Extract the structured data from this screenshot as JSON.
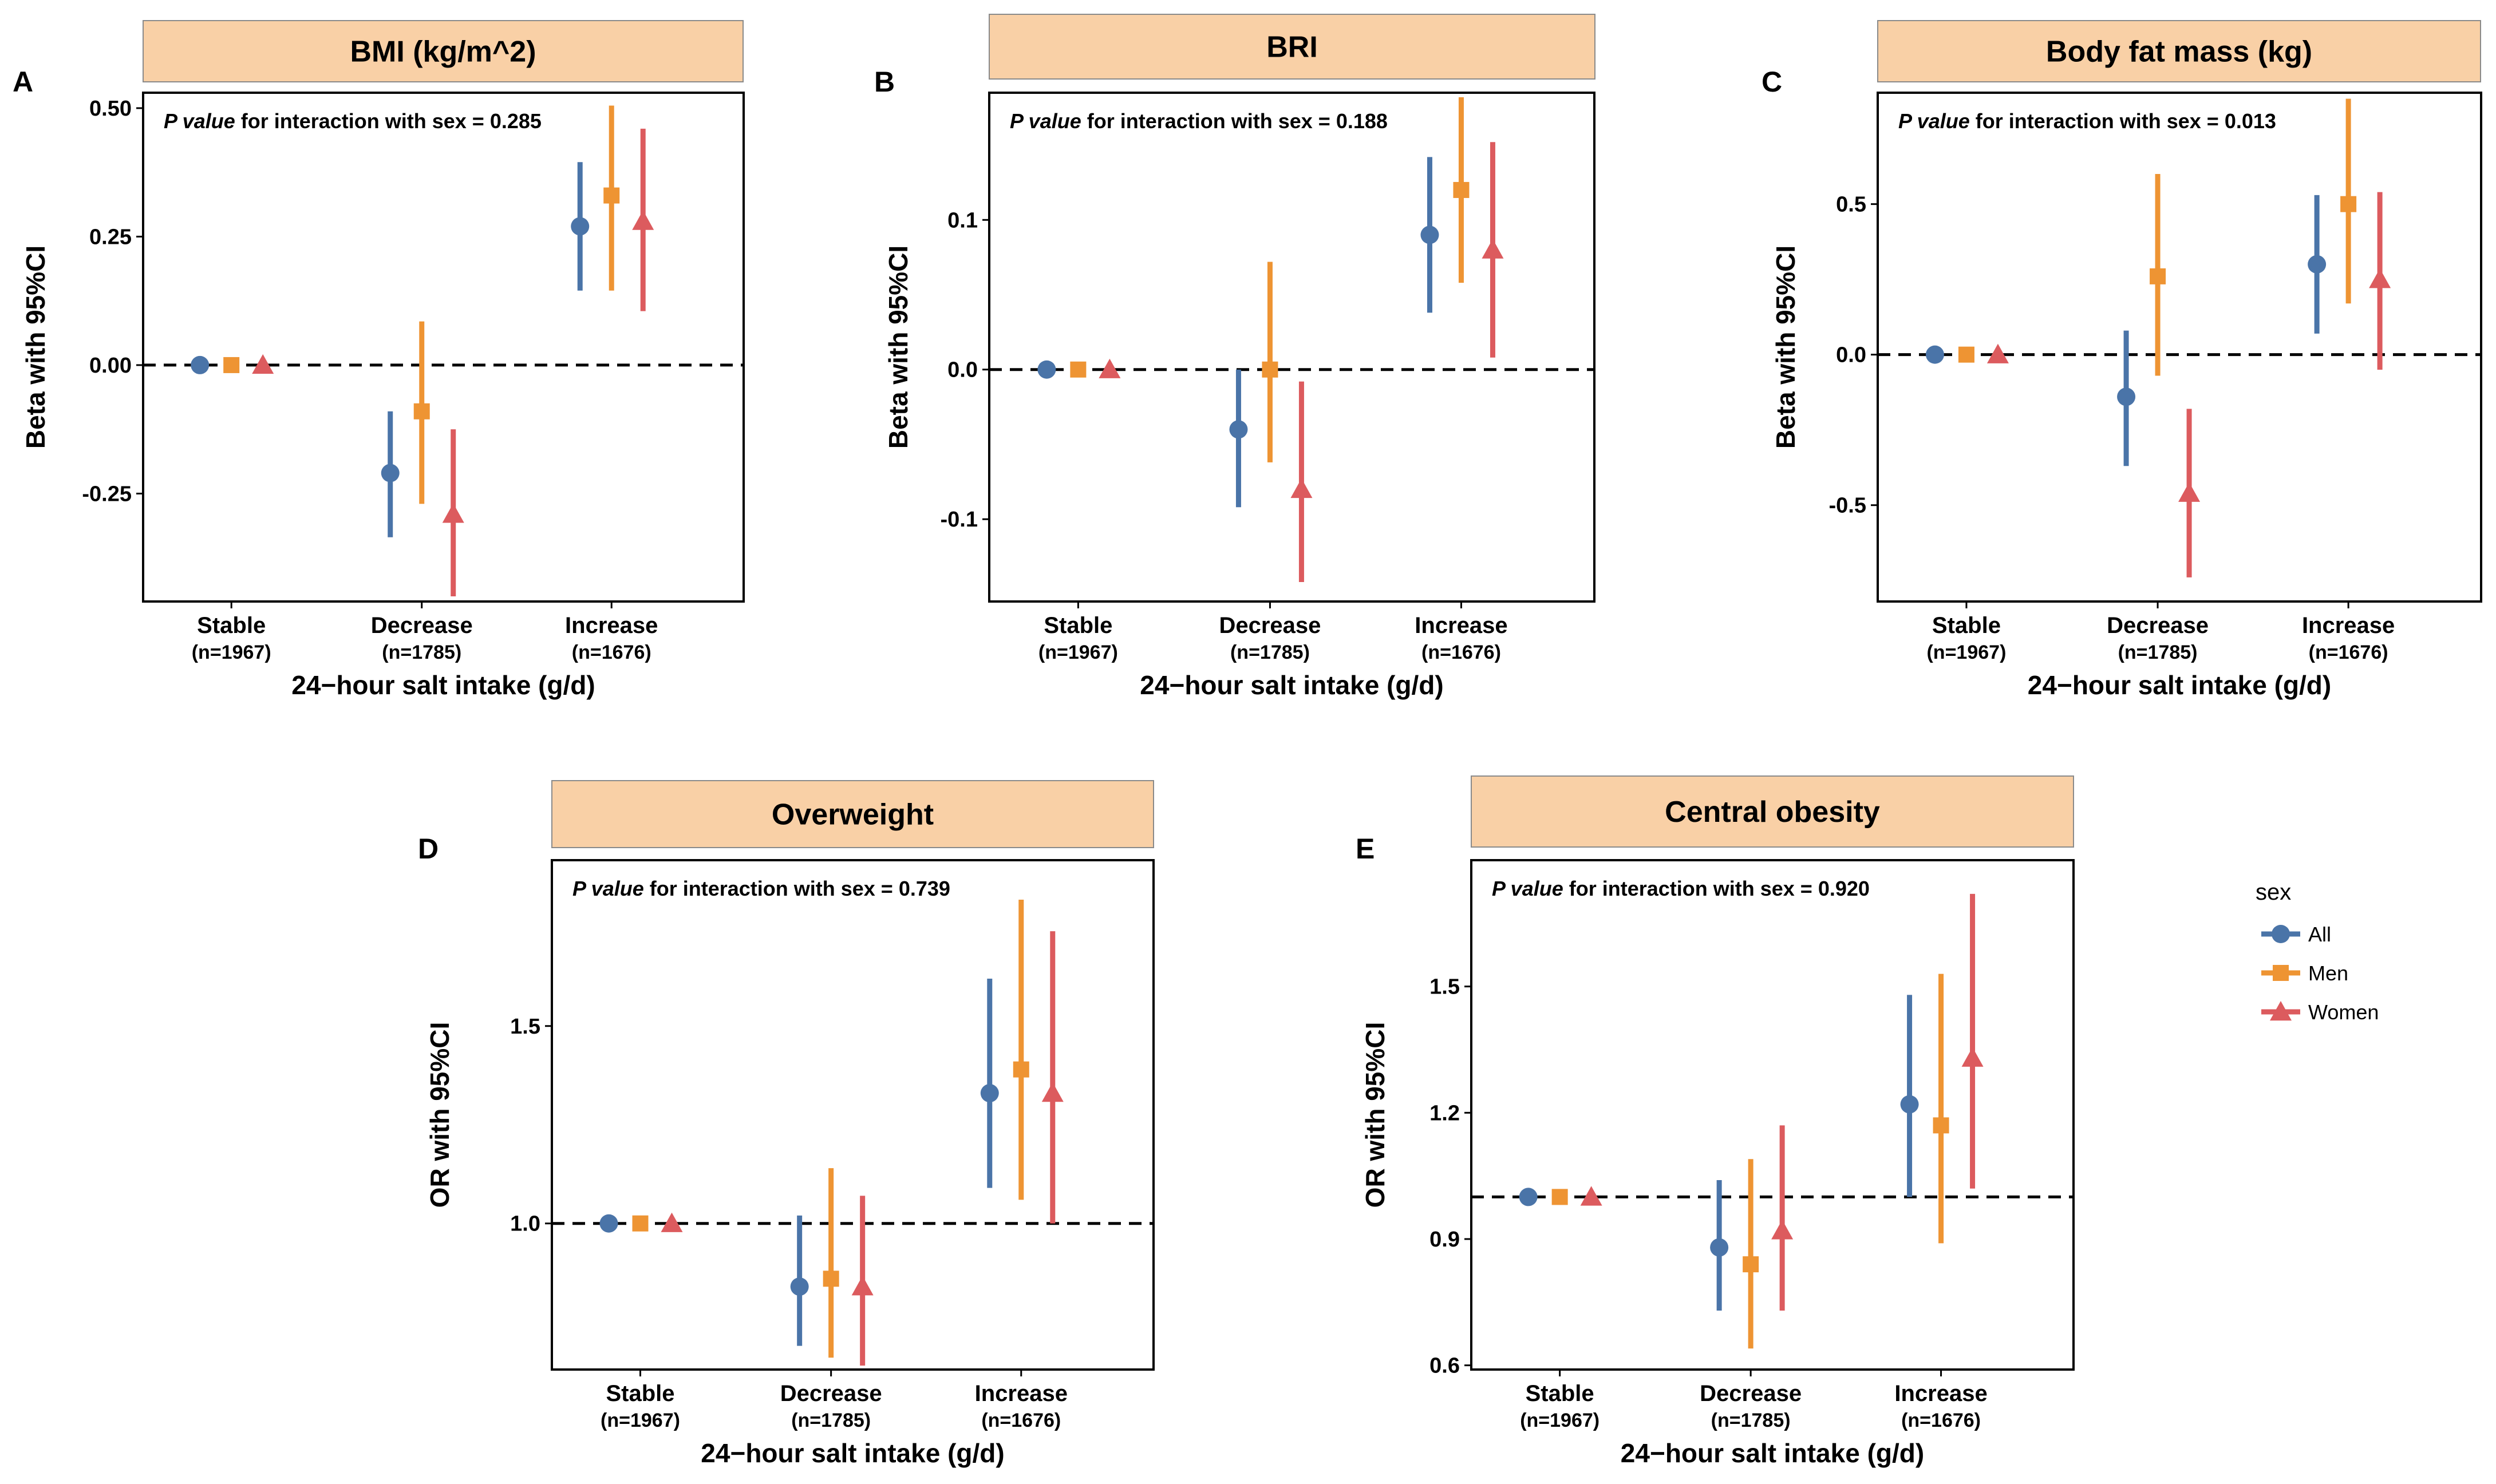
{
  "legend": {
    "title": "sex",
    "items": [
      {
        "label": "All",
        "color": "#4a74a8",
        "shape": "circle"
      },
      {
        "label": "Men",
        "color": "#ee9433",
        "shape": "square"
      },
      {
        "label": "Women",
        "color": "#dc5b5e",
        "shape": "triangle"
      }
    ]
  },
  "chart_data": [
    {
      "panel": "A",
      "type": "scatter",
      "title": "BMI (kg/m^2)",
      "ylabel": "Beta with 95%CI",
      "xlabel": "24−hour salt intake (g/d)",
      "annotation_p": "P value",
      "annotation_rest": " for interaction with sex = 0.285",
      "categories": [
        {
          "label": "Stable",
          "n": "(n=1967)"
        },
        {
          "label": "Decrease",
          "n": "(n=1785)"
        },
        {
          "label": "Increase",
          "n": "(n=1676)"
        }
      ],
      "ylim": [
        -0.46,
        0.53
      ],
      "yticks": [
        0.5,
        0.25,
        0.0,
        -0.25
      ],
      "ytick_labels": [
        "0.50",
        "0.25",
        "0.00",
        "-0.25"
      ],
      "reference": 0,
      "series": [
        {
          "name": "All",
          "est": [
            0.0,
            -0.21,
            0.27
          ],
          "lo": [
            null,
            -0.335,
            0.145
          ],
          "hi": [
            null,
            -0.09,
            0.395
          ]
        },
        {
          "name": "Men",
          "est": [
            0.0,
            -0.09,
            0.33
          ],
          "lo": [
            null,
            -0.27,
            0.145
          ],
          "hi": [
            null,
            0.085,
            0.505
          ]
        },
        {
          "name": "Women",
          "est": [
            0.0,
            -0.29,
            0.28
          ],
          "lo": [
            null,
            -0.45,
            0.105
          ],
          "hi": [
            null,
            -0.125,
            0.46
          ]
        }
      ]
    },
    {
      "panel": "B",
      "type": "scatter",
      "title": "BRI",
      "ylabel": "Beta with 95%CI",
      "xlabel": "24−hour salt intake (g/d)",
      "annotation_p": "P value",
      "annotation_rest": " for interaction with sex = 0.188",
      "categories": [
        {
          "label": "Stable",
          "n": "(n=1967)"
        },
        {
          "label": "Decrease",
          "n": "(n=1785)"
        },
        {
          "label": "Increase",
          "n": "(n=1676)"
        }
      ],
      "ylim": [
        -0.155,
        0.185
      ],
      "yticks": [
        0.1,
        0.0,
        -0.1
      ],
      "ytick_labels": [
        "0.1",
        "0.0",
        "-0.1"
      ],
      "reference": 0,
      "series": [
        {
          "name": "All",
          "est": [
            0.0,
            -0.04,
            0.09
          ],
          "lo": [
            null,
            -0.092,
            0.038
          ],
          "hi": [
            null,
            0.0,
            0.142
          ]
        },
        {
          "name": "Men",
          "est": [
            0.0,
            0.0,
            0.12
          ],
          "lo": [
            null,
            -0.062,
            0.058
          ],
          "hi": [
            null,
            0.072,
            0.182
          ]
        },
        {
          "name": "Women",
          "est": [
            0.0,
            -0.08,
            0.08
          ],
          "lo": [
            null,
            -0.142,
            0.008
          ],
          "hi": [
            null,
            -0.008,
            0.152
          ]
        }
      ]
    },
    {
      "panel": "C",
      "type": "scatter",
      "title": "Body fat mass (kg)",
      "ylabel": "Beta with 95%CI",
      "xlabel": "24−hour salt intake (g/d)",
      "annotation_p": "P value",
      "annotation_rest": " for interaction with sex = 0.013",
      "categories": [
        {
          "label": "Stable",
          "n": "(n=1967)"
        },
        {
          "label": "Decrease",
          "n": "(n=1785)"
        },
        {
          "label": "Increase",
          "n": "(n=1676)"
        }
      ],
      "ylim": [
        -0.82,
        0.87
      ],
      "yticks": [
        0.5,
        0.0,
        -0.5
      ],
      "ytick_labels": [
        "0.5",
        "0.0",
        "-0.5"
      ],
      "reference": 0,
      "series": [
        {
          "name": "All",
          "est": [
            0.0,
            -0.14,
            0.3
          ],
          "lo": [
            null,
            -0.37,
            0.07
          ],
          "hi": [
            null,
            0.08,
            0.53
          ]
        },
        {
          "name": "Men",
          "est": [
            0.0,
            0.26,
            0.5
          ],
          "lo": [
            null,
            -0.07,
            0.17
          ],
          "hi": [
            null,
            0.6,
            0.85
          ]
        },
        {
          "name": "Women",
          "est": [
            0.0,
            -0.46,
            0.25
          ],
          "lo": [
            null,
            -0.74,
            -0.05
          ],
          "hi": [
            null,
            -0.18,
            0.54
          ]
        }
      ]
    },
    {
      "panel": "D",
      "type": "scatter",
      "title": "Overweight",
      "ylabel": "OR with 95%CI",
      "xlabel": "24−hour salt intake (g/d)",
      "annotation_p": "P value",
      "annotation_rest": " for interaction with sex = 0.739",
      "categories": [
        {
          "label": "Stable",
          "n": "(n=1967)"
        },
        {
          "label": "Decrease",
          "n": "(n=1785)"
        },
        {
          "label": "Increase",
          "n": "(n=1676)"
        }
      ],
      "ylim": [
        0.63,
        1.92
      ],
      "yticks": [
        1.5,
        1.0
      ],
      "ytick_labels": [
        "1.5",
        "1.0"
      ],
      "reference": 1,
      "series": [
        {
          "name": "All",
          "est": [
            1.0,
            0.84,
            1.33
          ],
          "lo": [
            null,
            0.69,
            1.09
          ],
          "hi": [
            null,
            1.02,
            1.62
          ]
        },
        {
          "name": "Men",
          "est": [
            1.0,
            0.86,
            1.39
          ],
          "lo": [
            null,
            0.66,
            1.06
          ],
          "hi": [
            null,
            1.14,
            1.82
          ]
        },
        {
          "name": "Women",
          "est": [
            1.0,
            0.84,
            1.33
          ],
          "lo": [
            null,
            0.64,
            1.0
          ],
          "hi": [
            null,
            1.07,
            1.74
          ]
        }
      ]
    },
    {
      "panel": "E",
      "type": "scatter",
      "title": "Central obesity",
      "ylabel": "OR with 95%CI",
      "xlabel": "24−hour salt intake (g/d)",
      "annotation_p": "P value",
      "annotation_rest": " for interaction with sex = 0.920",
      "categories": [
        {
          "label": "Stable",
          "n": "(n=1967)"
        },
        {
          "label": "Decrease",
          "n": "(n=1785)"
        },
        {
          "label": "Increase",
          "n": "(n=1676)"
        }
      ],
      "ylim": [
        0.59,
        1.8
      ],
      "yticks": [
        1.5,
        1.2,
        0.9,
        0.6
      ],
      "ytick_labels": [
        "1.5",
        "1.2",
        "0.9",
        "0.6"
      ],
      "reference": 1,
      "series": [
        {
          "name": "All",
          "est": [
            1.0,
            0.88,
            1.22
          ],
          "lo": [
            null,
            0.73,
            1.0
          ],
          "hi": [
            null,
            1.04,
            1.48
          ]
        },
        {
          "name": "Men",
          "est": [
            1.0,
            0.84,
            1.17
          ],
          "lo": [
            null,
            0.64,
            0.89
          ],
          "hi": [
            null,
            1.09,
            1.53
          ]
        },
        {
          "name": "Women",
          "est": [
            1.0,
            0.92,
            1.33
          ],
          "lo": [
            null,
            0.73,
            1.02
          ],
          "hi": [
            null,
            1.17,
            1.72
          ]
        }
      ]
    }
  ]
}
